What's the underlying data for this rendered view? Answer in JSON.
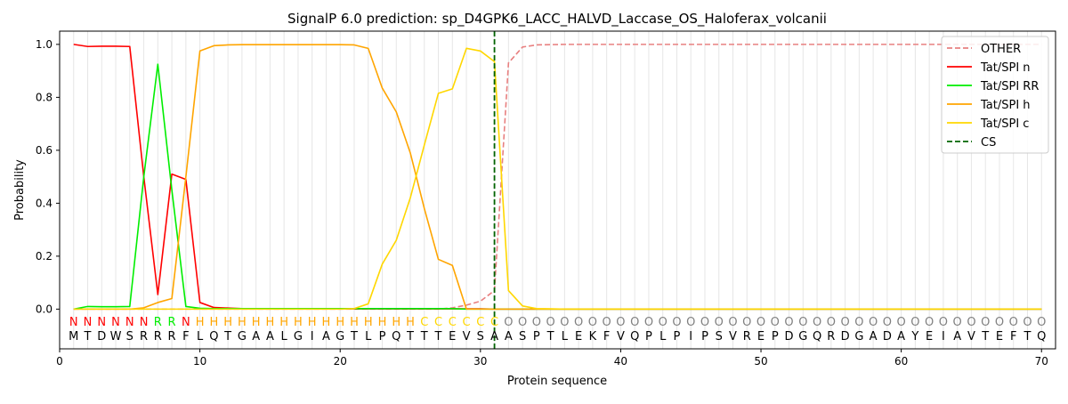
{
  "chart_data": {
    "type": "line",
    "title": "SignalP 6.0 prediction: sp_D4GPK6_LACC_HALVD_Laccase_OS_Haloferax_volcanii",
    "xlabel": "Protein sequence",
    "ylabel": "Probability",
    "xlim": [
      0,
      71
    ],
    "ylim": [
      -0.15,
      1.05
    ],
    "x_ticks": [
      0,
      10,
      20,
      30,
      40,
      50,
      60,
      70
    ],
    "y_ticks": [
      0.0,
      0.2,
      0.4,
      0.6,
      0.8,
      1.0
    ],
    "y_tick_labels": [
      "0.0",
      "0.2",
      "0.4",
      "0.6",
      "0.8",
      "1.0"
    ],
    "legend_position": "top-right",
    "vertical_grid": "each residue position",
    "sequence": [
      "M",
      "T",
      "D",
      "W",
      "S",
      "R",
      "R",
      "R",
      "F",
      "L",
      "Q",
      "T",
      "G",
      "A",
      "A",
      "L",
      "G",
      "I",
      "A",
      "G",
      "T",
      "L",
      "P",
      "Q",
      "T",
      "T",
      "T",
      "E",
      "V",
      "S",
      "A",
      "A",
      "S",
      "P",
      "T",
      "L",
      "E",
      "K",
      "F",
      "V",
      "Q",
      "P",
      "L",
      "P",
      "I",
      "P",
      "S",
      "V",
      "R",
      "E",
      "P",
      "D",
      "G",
      "Q",
      "R",
      "D",
      "G",
      "A",
      "D",
      "A",
      "Y",
      "E",
      "I",
      "A",
      "V",
      "T",
      "E",
      "F",
      "T",
      "Q"
    ],
    "region_labels": [
      "N",
      "N",
      "N",
      "N",
      "N",
      "N",
      "R",
      "R",
      "N",
      "H",
      "H",
      "H",
      "H",
      "H",
      "H",
      "H",
      "H",
      "H",
      "H",
      "H",
      "H",
      "H",
      "H",
      "H",
      "H",
      "C",
      "C",
      "C",
      "C",
      "C",
      "C",
      "O",
      "O",
      "O",
      "O",
      "O",
      "O",
      "O",
      "O",
      "O",
      "O",
      "O",
      "O",
      "O",
      "O",
      "O",
      "O",
      "O",
      "O",
      "O",
      "O",
      "O",
      "O",
      "O",
      "O",
      "O",
      "O",
      "O",
      "O",
      "O",
      "O",
      "O",
      "O",
      "O",
      "O",
      "O",
      "O",
      "O",
      "O",
      "O"
    ],
    "region_colors": {
      "N": "#ff0000",
      "R": "#00ee00",
      "H": "#ffa500",
      "C": "#ffd700",
      "O": "#808080"
    },
    "cleavage_site": 31,
    "x": [
      1,
      2,
      3,
      4,
      5,
      6,
      7,
      8,
      9,
      10,
      11,
      12,
      13,
      14,
      15,
      16,
      17,
      18,
      19,
      20,
      21,
      22,
      23,
      24,
      25,
      26,
      27,
      28,
      29,
      30,
      31,
      32,
      33,
      34,
      35,
      36,
      37,
      38,
      39,
      40,
      41,
      42,
      43,
      44,
      45,
      46,
      47,
      48,
      49,
      50,
      51,
      52,
      53,
      54,
      55,
      56,
      57,
      58,
      59,
      60,
      61,
      62,
      63,
      64,
      65,
      66,
      67,
      68,
      69,
      70
    ],
    "series": [
      {
        "name": "OTHER",
        "color": "#e88080",
        "dash": true,
        "values": [
          0.0,
          0.0,
          0.0,
          0.0,
          0.0,
          0.0,
          0.0,
          0.0,
          0.0,
          0.0,
          0.0,
          0.0,
          0.0,
          0.0,
          0.0,
          0.0,
          0.0,
          0.0,
          0.0,
          0.0,
          0.0,
          0.0,
          0.0,
          0.0,
          0.0,
          0.0,
          0.0,
          0.005,
          0.015,
          0.03,
          0.07,
          0.93,
          0.99,
          0.998,
          0.999,
          1,
          1,
          1,
          1,
          1,
          1,
          1,
          1,
          1,
          1,
          1,
          1,
          1,
          1,
          1,
          1,
          1,
          1,
          1,
          1,
          1,
          1,
          1,
          1,
          1,
          1,
          1,
          1,
          1,
          1,
          1,
          1,
          1,
          1,
          1
        ]
      },
      {
        "name": "Tat/SPI n",
        "color": "#ff0000",
        "dash": false,
        "values": [
          1.0,
          0.992,
          0.993,
          0.993,
          0.992,
          0.5,
          0.055,
          0.51,
          0.49,
          0.025,
          0.006,
          0.004,
          0.002,
          0.001,
          0.001,
          0.001,
          0.001,
          0.001,
          0.001,
          0.001,
          0.001,
          0.001,
          0.001,
          0.001,
          0.001,
          0.001,
          0.001,
          0.001,
          0.001,
          0.001,
          0.0,
          0,
          0,
          0,
          0,
          0,
          0,
          0,
          0,
          0,
          0,
          0,
          0,
          0,
          0,
          0,
          0,
          0,
          0,
          0,
          0,
          0,
          0,
          0,
          0,
          0,
          0,
          0,
          0,
          0,
          0,
          0,
          0,
          0,
          0,
          0,
          0,
          0,
          0,
          0
        ]
      },
      {
        "name": "Tat/SPI RR",
        "color": "#00ee00",
        "dash": false,
        "values": [
          0.0,
          0.01,
          0.009,
          0.009,
          0.01,
          0.5,
          0.925,
          0.45,
          0.01,
          0.003,
          0.002,
          0.002,
          0.002,
          0.002,
          0.002,
          0.002,
          0.002,
          0.002,
          0.002,
          0.002,
          0.002,
          0.002,
          0.002,
          0.002,
          0.002,
          0.002,
          0.002,
          0.002,
          0.0,
          0.0,
          0.0,
          0,
          0,
          0,
          0,
          0,
          0,
          0,
          0,
          0,
          0,
          0,
          0,
          0,
          0,
          0,
          0,
          0,
          0,
          0,
          0,
          0,
          0,
          0,
          0,
          0,
          0,
          0,
          0,
          0,
          0,
          0,
          0,
          0,
          0,
          0,
          0,
          0,
          0,
          0
        ]
      },
      {
        "name": "Tat/SPI h",
        "color": "#ffa500",
        "dash": false,
        "values": [
          0.0,
          0.0,
          0.0,
          0.0,
          0.0,
          0.005,
          0.025,
          0.04,
          0.5,
          0.975,
          0.995,
          0.998,
          0.999,
          0.999,
          0.999,
          0.999,
          0.999,
          0.999,
          0.999,
          0.999,
          0.998,
          0.985,
          0.835,
          0.745,
          0.59,
          0.38,
          0.188,
          0.165,
          0.0,
          0.0,
          0.0,
          0,
          0,
          0,
          0,
          0,
          0,
          0,
          0,
          0,
          0,
          0,
          0,
          0,
          0,
          0,
          0,
          0,
          0,
          0,
          0,
          0,
          0,
          0,
          0,
          0,
          0,
          0,
          0,
          0,
          0,
          0,
          0,
          0,
          0,
          0,
          0,
          0,
          0,
          0
        ]
      },
      {
        "name": "Tat/SPI c",
        "color": "#ffd700",
        "dash": false,
        "values": [
          0.0,
          0.0,
          0.0,
          0.0,
          0.0,
          0.0,
          0.0,
          0.0,
          0.0,
          0.0,
          0.0,
          0.0,
          0.0,
          0.0,
          0.0,
          0.0,
          0.0,
          0.0,
          0.0,
          0.0,
          0.002,
          0.02,
          0.17,
          0.26,
          0.42,
          0.62,
          0.815,
          0.832,
          0.985,
          0.975,
          0.935,
          0.07,
          0.012,
          0.002,
          0.001,
          0,
          0,
          0,
          0,
          0,
          0,
          0,
          0,
          0,
          0,
          0,
          0,
          0,
          0,
          0,
          0,
          0,
          0,
          0,
          0,
          0,
          0,
          0,
          0,
          0,
          0,
          0,
          0,
          0,
          0,
          0,
          0,
          0,
          0,
          0
        ]
      }
    ],
    "legend": [
      {
        "label": "OTHER",
        "color": "#e88080",
        "dash": true
      },
      {
        "label": "Tat/SPI n",
        "color": "#ff0000",
        "dash": false
      },
      {
        "label": "Tat/SPI RR",
        "color": "#00ee00",
        "dash": false
      },
      {
        "label": "Tat/SPI h",
        "color": "#ffa500",
        "dash": false
      },
      {
        "label": "Tat/SPI c",
        "color": "#ffd700",
        "dash": false
      },
      {
        "label": "CS",
        "color": "#006400",
        "dash": true
      }
    ]
  }
}
